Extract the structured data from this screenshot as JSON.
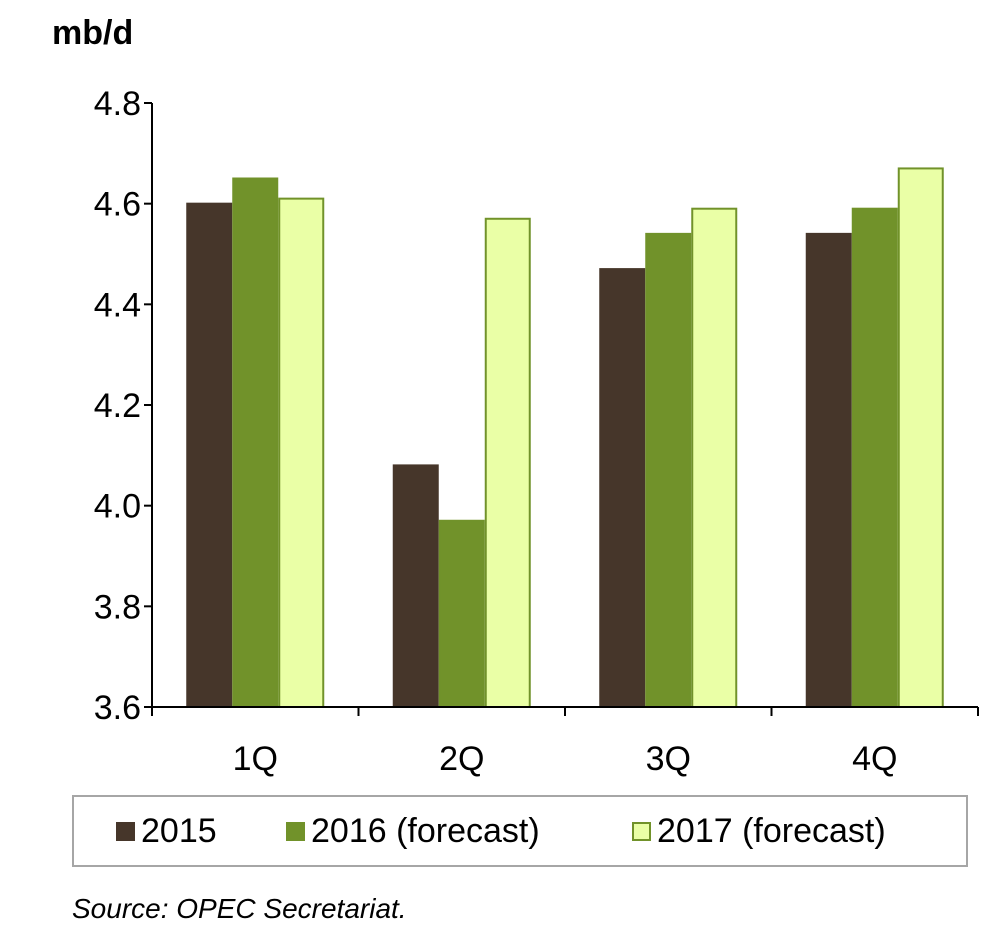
{
  "chart_data": {
    "type": "bar",
    "ylabel": "mb/d",
    "categories": [
      "1Q",
      "2Q",
      "3Q",
      "4Q"
    ],
    "series": [
      {
        "name": "2015",
        "values": [
          4.6,
          4.08,
          4.47,
          4.54
        ],
        "color": "#46362a",
        "stroke": "#46362a"
      },
      {
        "name": "2016 (forecast)",
        "values": [
          4.65,
          3.97,
          4.54,
          4.59
        ],
        "color": "#71922a",
        "stroke": "#71922a"
      },
      {
        "name": "2017 (forecast)",
        "values": [
          4.61,
          4.57,
          4.59,
          4.67
        ],
        "color": "#eaffa6",
        "stroke": "#71922a"
      }
    ],
    "ylim": [
      3.6,
      4.8
    ],
    "yticks": [
      "3.6",
      "3.8",
      "4.0",
      "4.2",
      "4.4",
      "4.6",
      "4.8"
    ],
    "grid": false,
    "legend_position": "bottom"
  },
  "source": "Source: OPEC Secretariat."
}
